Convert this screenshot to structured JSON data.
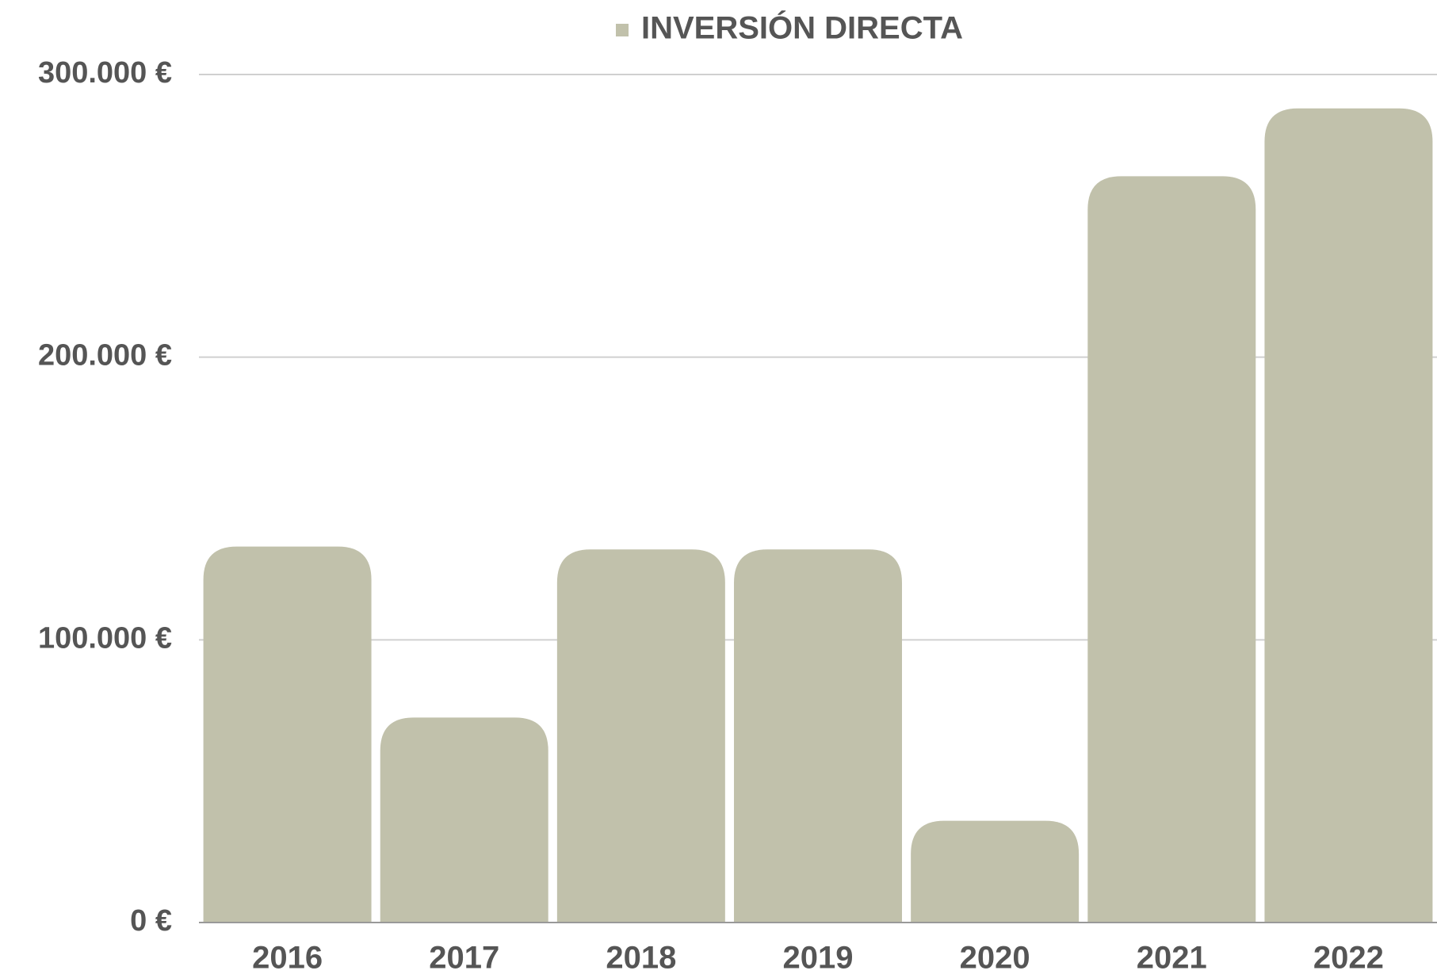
{
  "chart_data": {
    "type": "bar",
    "categories": [
      "2016",
      "2017",
      "2018",
      "2019",
      "2020",
      "2021",
      "2022"
    ],
    "series": [
      {
        "name": "INVERSIÓN DIRECTA",
        "color": "#c1c1ab",
        "values": [
          133000,
          72500,
          132000,
          132000,
          36000,
          264000,
          288000
        ]
      }
    ],
    "ylim": [
      0,
      300000
    ],
    "yticks": [
      {
        "value": 0,
        "label": "0 €"
      },
      {
        "value": 100000,
        "label": "100.000 €"
      },
      {
        "value": 200000,
        "label": "200.000 €"
      },
      {
        "value": 300000,
        "label": "300.000 €"
      }
    ],
    "grid": true,
    "legend": "top"
  }
}
